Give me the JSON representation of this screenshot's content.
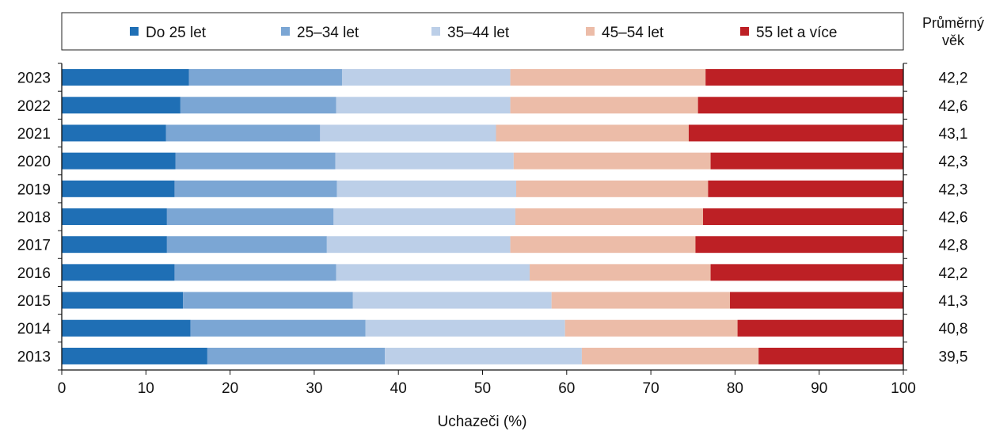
{
  "chart_data": {
    "type": "bar",
    "orientation": "horizontal",
    "stacked": true,
    "xlabel": "Uchazeči (%)",
    "xlim": [
      0,
      100
    ],
    "xticks": [
      0,
      10,
      20,
      30,
      40,
      50,
      60,
      70,
      80,
      90,
      100
    ],
    "grid": false,
    "legend_position": "top",
    "categories": [
      "2023",
      "2022",
      "2021",
      "2020",
      "2019",
      "2018",
      "2017",
      "2016",
      "2015",
      "2014",
      "2013"
    ],
    "series": [
      {
        "name": "Do 25 let",
        "color": "#1f6fb5",
        "values": [
          15.1,
          14.1,
          12.4,
          13.5,
          13.4,
          12.5,
          12.5,
          13.4,
          14.4,
          15.3,
          17.3
        ]
      },
      {
        "name": "25–34 let",
        "color": "#7ba6d4",
        "values": [
          18.2,
          18.5,
          18.3,
          19.0,
          19.3,
          19.8,
          19.0,
          19.2,
          20.2,
          20.8,
          21.1
        ]
      },
      {
        "name": "35–44 let",
        "color": "#bccfe8",
        "values": [
          20.0,
          20.7,
          20.9,
          21.2,
          21.3,
          21.6,
          21.8,
          23.0,
          23.6,
          23.7,
          23.4
        ]
      },
      {
        "name": "45–54 let",
        "color": "#ecbca8",
        "values": [
          23.2,
          22.3,
          22.9,
          23.4,
          22.8,
          22.3,
          22.0,
          21.5,
          21.2,
          20.5,
          21.0
        ]
      },
      {
        "name": "55 let a více",
        "color": "#bd2025",
        "values": [
          23.5,
          24.4,
          25.5,
          22.9,
          23.2,
          23.8,
          24.7,
          22.9,
          20.6,
          19.7,
          17.2
        ]
      }
    ],
    "side_column": {
      "header_line1": "Průměrný",
      "header_line2": "věk",
      "values": [
        "42,2",
        "42,6",
        "43,1",
        "42,3",
        "42,3",
        "42,6",
        "42,8",
        "42,2",
        "41,3",
        "40,8",
        "39,5"
      ]
    }
  }
}
